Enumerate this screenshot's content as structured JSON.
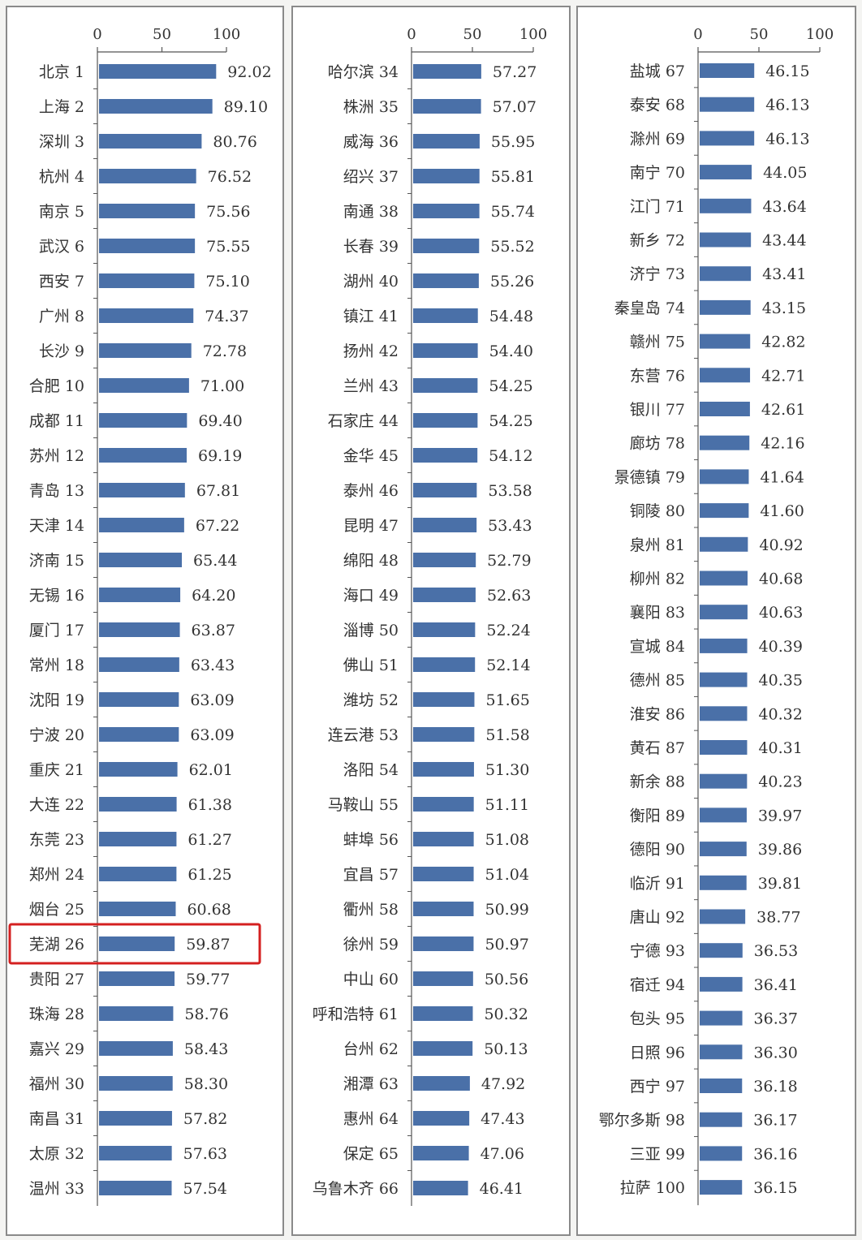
{
  "colors": {
    "bar": "#4a70a8",
    "panel_bg": "#ffffff",
    "border": "#8a8a8a",
    "highlight": "#d42020",
    "page_bg": "#f4f4f2"
  },
  "highlight": {
    "panel": 0,
    "row": 25
  },
  "chart_data": [
    {
      "type": "bar",
      "orientation": "horizontal",
      "xlim": [
        0,
        100
      ],
      "ticks": [
        "0",
        "50",
        "100"
      ],
      "categories": [
        "北京 1",
        "上海 2",
        "深圳 3",
        "杭州 4",
        "南京 5",
        "武汉 6",
        "西安 7",
        "广州 8",
        "长沙 9",
        "合肥 10",
        "成都 11",
        "苏州 12",
        "青岛 13",
        "天津 14",
        "济南 15",
        "无锡 16",
        "厦门 17",
        "常州 18",
        "沈阳 19",
        "宁波 20",
        "重庆 21",
        "大连 22",
        "东莞 23",
        "郑州 24",
        "烟台 25",
        "芜湖 26",
        "贵阳 27",
        "珠海 28",
        "嘉兴 29",
        "福州 30",
        "南昌 31",
        "太原 32",
        "温州 33"
      ],
      "values": [
        92.02,
        89.1,
        80.76,
        76.52,
        75.56,
        75.55,
        75.1,
        74.37,
        72.78,
        71.0,
        69.4,
        69.19,
        67.81,
        67.22,
        65.44,
        64.2,
        63.87,
        63.43,
        63.09,
        63.09,
        62.01,
        61.38,
        61.27,
        61.25,
        60.68,
        59.87,
        59.77,
        58.76,
        58.43,
        58.3,
        57.82,
        57.63,
        57.54
      ],
      "labels": [
        "92.02",
        "89.10",
        "80.76",
        "76.52",
        "75.56",
        "75.55",
        "75.10",
        "74.37",
        "72.78",
        "71.00",
        "69.40",
        "69.19",
        "67.81",
        "67.22",
        "65.44",
        "64.20",
        "63.87",
        "63.43",
        "63.09",
        "63.09",
        "62.01",
        "61.38",
        "61.27",
        "61.25",
        "60.68",
        "59.87",
        "59.77",
        "58.76",
        "58.43",
        "58.30",
        "57.82",
        "57.63",
        "57.54"
      ]
    },
    {
      "type": "bar",
      "orientation": "horizontal",
      "xlim": [
        0,
        100
      ],
      "ticks": [
        "0",
        "50",
        "100"
      ],
      "categories": [
        "哈尔滨 34",
        "株洲 35",
        "威海 36",
        "绍兴 37",
        "南通 38",
        "长春 39",
        "湖州 40",
        "镇江 41",
        "扬州 42",
        "兰州 43",
        "石家庄 44",
        "金华 45",
        "泰州 46",
        "昆明 47",
        "绵阳 48",
        "海口 49",
        "淄博 50",
        "佛山 51",
        "潍坊 52",
        "连云港 53",
        "洛阳 54",
        "马鞍山 55",
        "蚌埠 56",
        "宜昌 57",
        "衢州 58",
        "徐州 59",
        "中山 60",
        "呼和浩特 61",
        "台州 62",
        "湘潭 63",
        "惠州 64",
        "保定 65",
        "乌鲁木齐 66"
      ],
      "values": [
        57.27,
        57.07,
        55.95,
        55.81,
        55.74,
        55.52,
        55.26,
        54.48,
        54.4,
        54.25,
        54.25,
        54.12,
        53.58,
        53.43,
        52.79,
        52.63,
        52.24,
        52.14,
        51.65,
        51.58,
        51.3,
        51.11,
        51.08,
        51.04,
        50.99,
        50.97,
        50.56,
        50.32,
        50.13,
        47.92,
        47.43,
        47.06,
        46.41
      ],
      "labels": [
        "57.27",
        "57.07",
        "55.95",
        "55.81",
        "55.74",
        "55.52",
        "55.26",
        "54.48",
        "54.40",
        "54.25",
        "54.25",
        "54.12",
        "53.58",
        "53.43",
        "52.79",
        "52.63",
        "52.24",
        "52.14",
        "51.65",
        "51.58",
        "51.30",
        "51.11",
        "51.08",
        "51.04",
        "50.99",
        "50.97",
        "50.56",
        "50.32",
        "50.13",
        "47.92",
        "47.43",
        "47.06",
        "46.41"
      ]
    },
    {
      "type": "bar",
      "orientation": "horizontal",
      "xlim": [
        0,
        100
      ],
      "ticks": [
        "0",
        "50",
        "100"
      ],
      "categories": [
        "盐城 67",
        "泰安 68",
        "滁州 69",
        "南宁 70",
        "江门 71",
        "新乡 72",
        "济宁 73",
        "秦皇岛 74",
        "赣州 75",
        "东营 76",
        "银川 77",
        "廊坊 78",
        "景德镇 79",
        "铜陵 80",
        "泉州 81",
        "柳州 82",
        "襄阳 83",
        "宣城 84",
        "德州 85",
        "淮安 86",
        "黄石 87",
        "新余 88",
        "衡阳 89",
        "德阳 90",
        "临沂 91",
        "唐山 92",
        "宁德 93",
        "宿迁 94",
        "包头 95",
        "日照 96",
        "西宁 97",
        "鄂尔多斯 98",
        "三亚 99",
        "拉萨 100"
      ],
      "values": [
        46.15,
        46.13,
        46.13,
        44.05,
        43.64,
        43.44,
        43.41,
        43.15,
        42.82,
        42.71,
        42.61,
        42.16,
        41.64,
        41.6,
        40.92,
        40.68,
        40.63,
        40.39,
        40.35,
        40.32,
        40.31,
        40.23,
        39.97,
        39.86,
        39.81,
        38.77,
        36.53,
        36.41,
        36.37,
        36.3,
        36.18,
        36.17,
        36.16,
        36.15
      ],
      "labels": [
        "46.15",
        "46.13",
        "46.13",
        "44.05",
        "43.64",
        "43.44",
        "43.41",
        "43.15",
        "42.82",
        "42.71",
        "42.61",
        "42.16",
        "41.64",
        "41.60",
        "40.92",
        "40.68",
        "40.63",
        "40.39",
        "40.35",
        "40.32",
        "40.31",
        "40.23",
        "39.97",
        "39.86",
        "39.81",
        "38.77",
        "36.53",
        "36.41",
        "36.37",
        "36.30",
        "36.18",
        "36.17",
        "36.16",
        "36.15"
      ]
    }
  ]
}
